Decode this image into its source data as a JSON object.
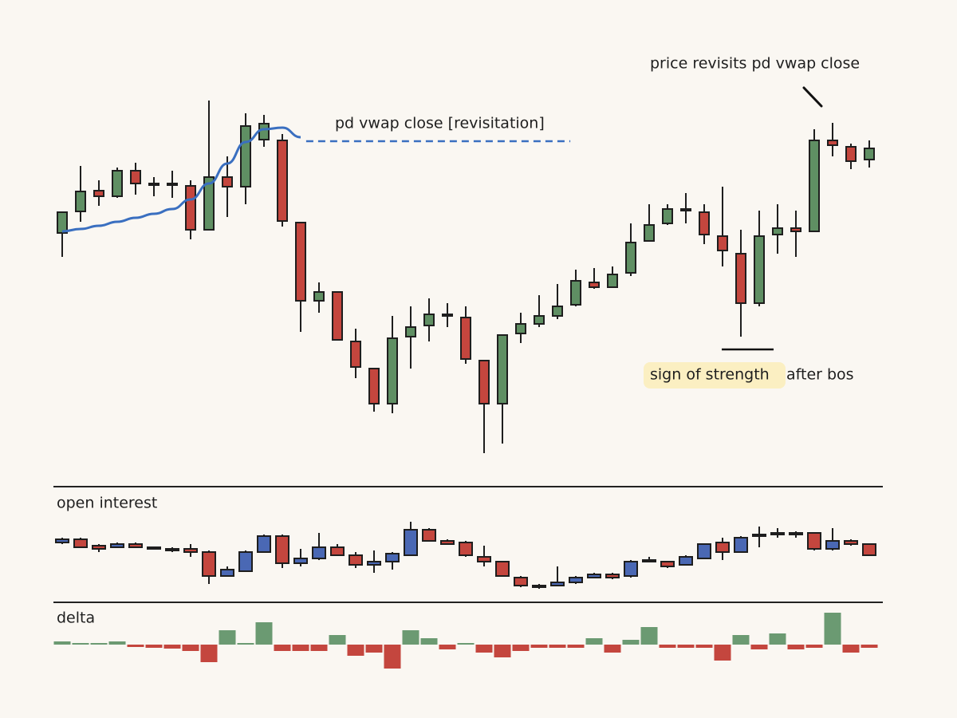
{
  "chart_data": [
    {
      "type": "candlestick",
      "up_color": "#5f8f63",
      "down_color": "#c4463e",
      "ylim": [
        30,
        500
      ],
      "open": [
        308,
        335,
        361,
        354,
        386,
        370,
        370,
        367,
        312,
        378,
        366,
        425,
        424,
        321,
        223,
        234,
        172,
        138,
        94,
        178,
        192,
        206,
        202,
        148,
        94,
        182,
        194,
        204,
        218,
        246,
        240,
        258,
        298,
        320,
        338,
        334,
        304,
        282,
        220,
        306,
        314,
        310,
        424,
        416,
        400
      ],
      "close": [
        334,
        360,
        354,
        386,
        370,
        369,
        370,
        312,
        378,
        366,
        442,
        445,
        323,
        223,
        234,
        174,
        140,
        94,
        176,
        190,
        206,
        206,
        150,
        94,
        180,
        194,
        204,
        216,
        248,
        240,
        256,
        296,
        318,
        338,
        338,
        306,
        286,
        220,
        304,
        314,
        310,
        424,
        418,
        398,
        414
      ],
      "high": [
        334,
        392,
        374,
        390,
        396,
        378,
        386,
        374,
        474,
        404,
        458,
        456,
        432,
        321,
        246,
        234,
        188,
        138,
        204,
        216,
        226,
        220,
        216,
        148,
        180,
        208,
        230,
        244,
        262,
        264,
        266,
        320,
        344,
        344,
        358,
        344,
        366,
        312,
        336,
        344,
        336,
        438,
        446,
        420,
        424
      ],
      "low": [
        278,
        322,
        342,
        352,
        356,
        354,
        352,
        300,
        312,
        328,
        344,
        416,
        316,
        184,
        208,
        174,
        126,
        84,
        82,
        138,
        172,
        190,
        144,
        32,
        44,
        170,
        190,
        200,
        216,
        238,
        240,
        254,
        298,
        318,
        320,
        294,
        266,
        178,
        216,
        282,
        278,
        310,
        404,
        388,
        390
      ],
      "vwap": {
        "color": "#3a6fc0",
        "values": [
          310,
          313,
          317,
          322,
          327,
          332,
          338,
          350,
          370,
          395,
          422,
          438,
          440,
          428
        ]
      },
      "level": {
        "value": 423,
        "x": [
          13.3,
          27.7
        ],
        "color": "#3a6fc0"
      },
      "annotations": [
        {
          "text": "pd vwap close [revisitation]"
        },
        {
          "text": "price revisits pd vwap close"
        },
        {
          "text": "sign of strength"
        },
        {
          "text": "after bos"
        }
      ]
    },
    {
      "type": "candlestick",
      "title": "open interest",
      "up_color": "#4a68b4",
      "down_color": "#c4463e",
      "ylim": [
        0,
        100
      ],
      "open": [
        65,
        69,
        61,
        59,
        63,
        59,
        57,
        57,
        53,
        23,
        29,
        53,
        73,
        39,
        45,
        59,
        49,
        37,
        41,
        49,
        81,
        67,
        65,
        47,
        41,
        21,
        11,
        11,
        15,
        21,
        25,
        23,
        41,
        41,
        37,
        45,
        65,
        53,
        73,
        75,
        77,
        77,
        57,
        67,
        63
      ],
      "close": [
        69,
        59,
        57,
        63,
        59,
        57,
        55,
        53,
        23,
        31,
        53,
        73,
        39,
        45,
        59,
        49,
        37,
        41,
        51,
        81,
        67,
        63,
        49,
        41,
        23,
        11,
        9,
        15,
        21,
        25,
        21,
        41,
        43,
        35,
        47,
        63,
        53,
        71,
        75,
        77,
        75,
        57,
        67,
        63,
        49
      ],
      "high": [
        71,
        71,
        63,
        65,
        65,
        59,
        59,
        63,
        55,
        35,
        55,
        75,
        75,
        57,
        77,
        63,
        53,
        55,
        53,
        91,
        83,
        69,
        67,
        61,
        41,
        23,
        13,
        35,
        23,
        27,
        27,
        43,
        47,
        41,
        49,
        63,
        71,
        73,
        85,
        83,
        79,
        77,
        83,
        69,
        63
      ],
      "low": [
        63,
        59,
        53,
        59,
        59,
        57,
        53,
        47,
        13,
        23,
        29,
        53,
        33,
        35,
        43,
        49,
        33,
        27,
        31,
        49,
        67,
        63,
        47,
        35,
        23,
        9,
        7,
        11,
        13,
        21,
        19,
        21,
        41,
        33,
        37,
        45,
        43,
        53,
        59,
        71,
        71,
        55,
        55,
        61,
        49
      ]
    },
    {
      "type": "bar",
      "title": "delta",
      "up_color": "#6b9a72",
      "down_color": "#c4463e",
      "ylim": [
        -40,
        50
      ],
      "values": [
        4,
        2,
        2,
        4,
        -3,
        -4,
        -5,
        -8,
        -22,
        18,
        2,
        28,
        -8,
        -8,
        -8,
        12,
        -14,
        -10,
        -30,
        18,
        8,
        -6,
        2,
        -10,
        -16,
        -8,
        -4,
        -4,
        -4,
        8,
        -10,
        6,
        22,
        -4,
        -4,
        -4,
        -20,
        12,
        -6,
        14,
        -6,
        -4,
        40,
        -10,
        -4
      ]
    }
  ]
}
